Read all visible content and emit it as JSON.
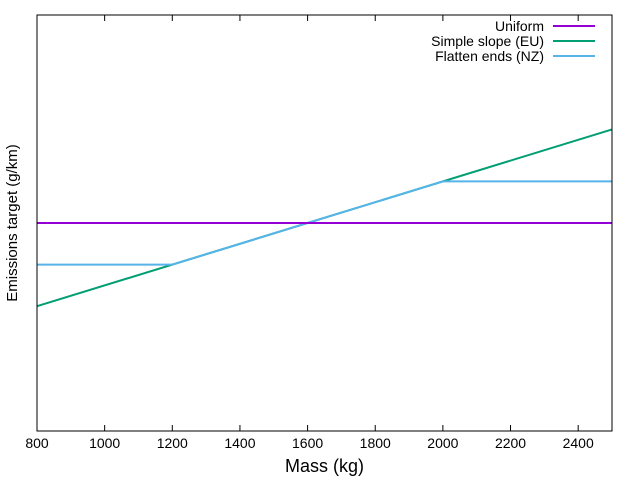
{
  "chart_data": {
    "type": "line",
    "title": "",
    "xlabel": "Mass (kg)",
    "ylabel": "Emissions target (g/km)",
    "xlim": [
      800,
      2500
    ],
    "ylim": [
      -1.0,
      1.0
    ],
    "xticks": [
      800,
      1000,
      1200,
      1400,
      1600,
      1800,
      2000,
      2200,
      2400
    ],
    "xtick_labels": [
      "800",
      "1000",
      "1200",
      "1400",
      "1600",
      "1800",
      "2000",
      "2200",
      "2400"
    ],
    "y_tick_labels_shown": false,
    "grid": false,
    "legend_position": "top-right",
    "series": [
      {
        "name": "Uniform",
        "color": "#9400d3",
        "x": [
          800,
          2500
        ],
        "y": [
          0.0,
          0.0
        ]
      },
      {
        "name": "Simple slope (EU)",
        "color": "#009e73",
        "x": [
          800,
          2500
        ],
        "y": [
          -0.4,
          0.45
        ]
      },
      {
        "name": "Flatten ends (NZ)",
        "color": "#56b4e9",
        "x": [
          800,
          1200,
          2000,
          2500
        ],
        "y": [
          -0.2,
          -0.2,
          0.2,
          0.2
        ]
      }
    ]
  }
}
